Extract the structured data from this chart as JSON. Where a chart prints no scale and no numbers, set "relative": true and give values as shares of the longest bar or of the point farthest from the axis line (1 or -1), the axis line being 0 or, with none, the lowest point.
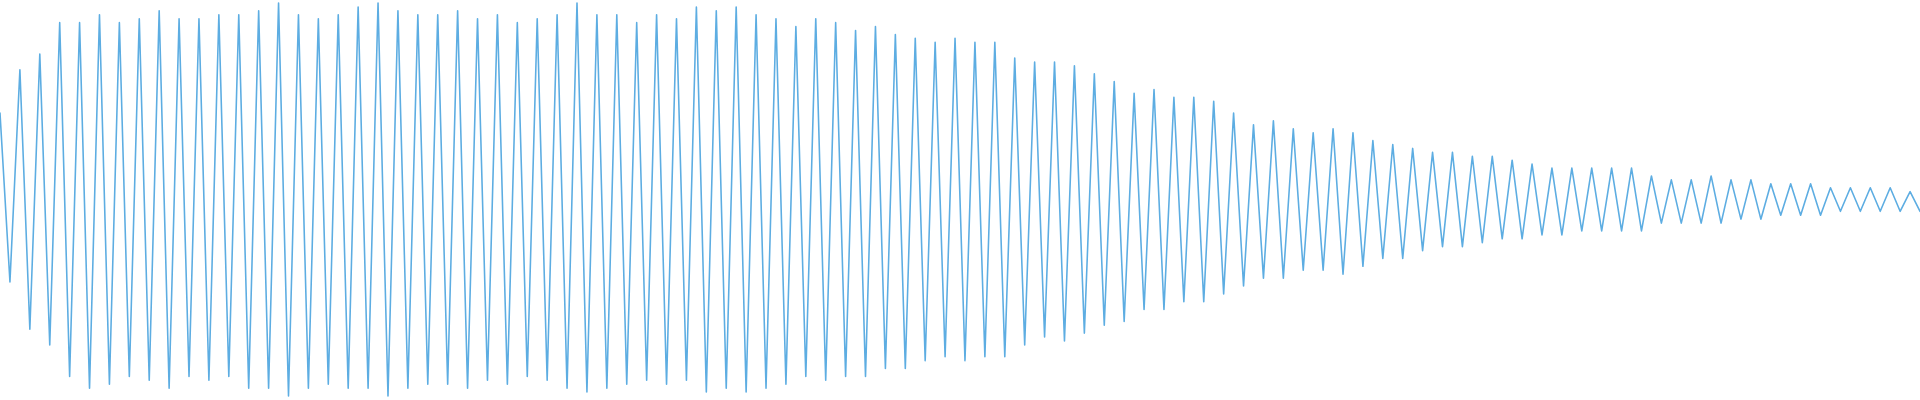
{
  "chart_data": {
    "type": "line",
    "relative": true,
    "color": "#5dade2",
    "categories": [
      null,
      null,
      null,
      null,
      null,
      null,
      null,
      null,
      null,
      null,
      null,
      null,
      null,
      null,
      null,
      null,
      null,
      null,
      null,
      null,
      null,
      null,
      null,
      null,
      null,
      null,
      null,
      null,
      null,
      null,
      null,
      null,
      null,
      null,
      null,
      null,
      null,
      null,
      null,
      null,
      null,
      null,
      null,
      null,
      null,
      null,
      null,
      null,
      null,
      null,
      null,
      null,
      null,
      null,
      null,
      null,
      null,
      null,
      null,
      null,
      null,
      null,
      null,
      null,
      null,
      null,
      null,
      null,
      null,
      null,
      null,
      null,
      null,
      null,
      null,
      null,
      null,
      null,
      null,
      null,
      null,
      null,
      null,
      null,
      null,
      null,
      null,
      null,
      null,
      null,
      null,
      null,
      null,
      null,
      null,
      null,
      null,
      null,
      null,
      null,
      null,
      null,
      null,
      null,
      null,
      null,
      null,
      null,
      null,
      null,
      null,
      null,
      null,
      null,
      null,
      null,
      null,
      null,
      null,
      null,
      null,
      null,
      null,
      null,
      null,
      null,
      null,
      null,
      null,
      null,
      null,
      null,
      null,
      null,
      null,
      null,
      null,
      null,
      null,
      null,
      null,
      null,
      null,
      null,
      null,
      null,
      null,
      null,
      null,
      null,
      null,
      null,
      null,
      null,
      null,
      null,
      null,
      null,
      null,
      null,
      null,
      null,
      null,
      null,
      null,
      null,
      null,
      null,
      null,
      null,
      null,
      null,
      null,
      null,
      null,
      null,
      null,
      null,
      null,
      null,
      null,
      null,
      null,
      null,
      null,
      null,
      null,
      null,
      null,
      null,
      null,
      null,
      null,
      null
    ],
    "values": [
      0.72,
      0.29,
      0.83,
      0.17,
      0.87,
      0.13,
      0.95,
      0.05,
      0.95,
      0.02,
      0.97,
      0.03,
      0.95,
      0.05,
      0.96,
      0.04,
      0.98,
      0.02,
      0.96,
      0.05,
      0.96,
      0.04,
      0.97,
      0.05,
      0.97,
      0.02,
      0.98,
      0.02,
      1.0,
      0.0,
      0.97,
      0.02,
      0.96,
      0.03,
      0.97,
      0.02,
      0.99,
      0.02,
      1.0,
      0.0,
      0.98,
      0.02,
      0.97,
      0.03,
      0.97,
      0.03,
      0.98,
      0.02,
      0.96,
      0.04,
      0.97,
      0.03,
      0.95,
      0.05,
      0.96,
      0.04,
      0.97,
      0.02,
      1.0,
      0.01,
      0.97,
      0.02,
      0.97,
      0.03,
      0.95,
      0.04,
      0.97,
      0.03,
      0.96,
      0.04,
      0.99,
      0.01,
      0.98,
      0.02,
      0.99,
      0.01,
      0.97,
      0.02,
      0.96,
      0.03,
      0.94,
      0.05,
      0.96,
      0.04,
      0.95,
      0.05,
      0.93,
      0.05,
      0.94,
      0.07,
      0.92,
      0.07,
      0.91,
      0.09,
      0.9,
      0.1,
      0.91,
      0.09,
      0.9,
      0.1,
      0.9,
      0.1,
      0.86,
      0.13,
      0.85,
      0.15,
      0.85,
      0.14,
      0.84,
      0.16,
      0.82,
      0.18,
      0.8,
      0.19,
      0.77,
      0.22,
      0.78,
      0.22,
      0.76,
      0.24,
      0.76,
      0.24,
      0.75,
      0.26,
      0.72,
      0.28,
      0.69,
      0.3,
      0.7,
      0.3,
      0.68,
      0.32,
      0.67,
      0.32,
      0.68,
      0.31,
      0.67,
      0.33,
      0.65,
      0.35,
      0.64,
      0.35,
      0.63,
      0.37,
      0.62,
      0.38,
      0.62,
      0.38,
      0.61,
      0.39,
      0.61,
      0.4,
      0.6,
      0.4,
      0.59,
      0.41,
      0.58,
      0.41,
      0.58,
      0.42,
      0.58,
      0.42,
      0.58,
      0.42,
      0.58,
      0.42,
      0.56,
      0.44,
      0.55,
      0.44,
      0.55,
      0.44,
      0.56,
      0.44,
      0.55,
      0.45,
      0.55,
      0.45,
      0.54,
      0.46,
      0.54,
      0.46,
      0.54,
      0.46,
      0.53,
      0.47,
      0.53,
      0.47,
      0.53,
      0.47,
      0.53,
      0.47,
      0.52,
      0.47
    ]
  }
}
